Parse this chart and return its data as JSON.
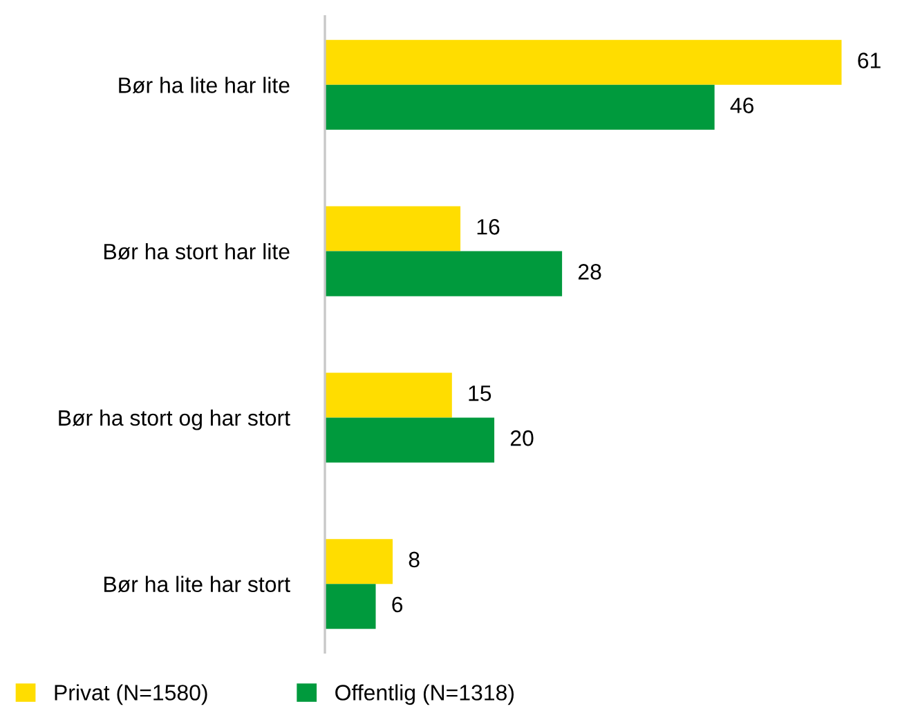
{
  "chart_data": {
    "type": "bar",
    "orientation": "horizontal",
    "categories": [
      "Bør ha lite har lite",
      "Bør ha stort har lite",
      "Bør ha stort og har stort",
      "Bør ha lite har stort"
    ],
    "series": [
      {
        "name": "Privat (N=1580)",
        "color": "#ffdd00",
        "values": [
          61,
          16,
          15,
          8
        ]
      },
      {
        "name": "Offentlig (N=1318)",
        "color": "#009a3d",
        "values": [
          46,
          28,
          20,
          6
        ]
      }
    ],
    "data_labels": true,
    "legend": "bottom",
    "grid": false,
    "tick_labels": "y"
  }
}
